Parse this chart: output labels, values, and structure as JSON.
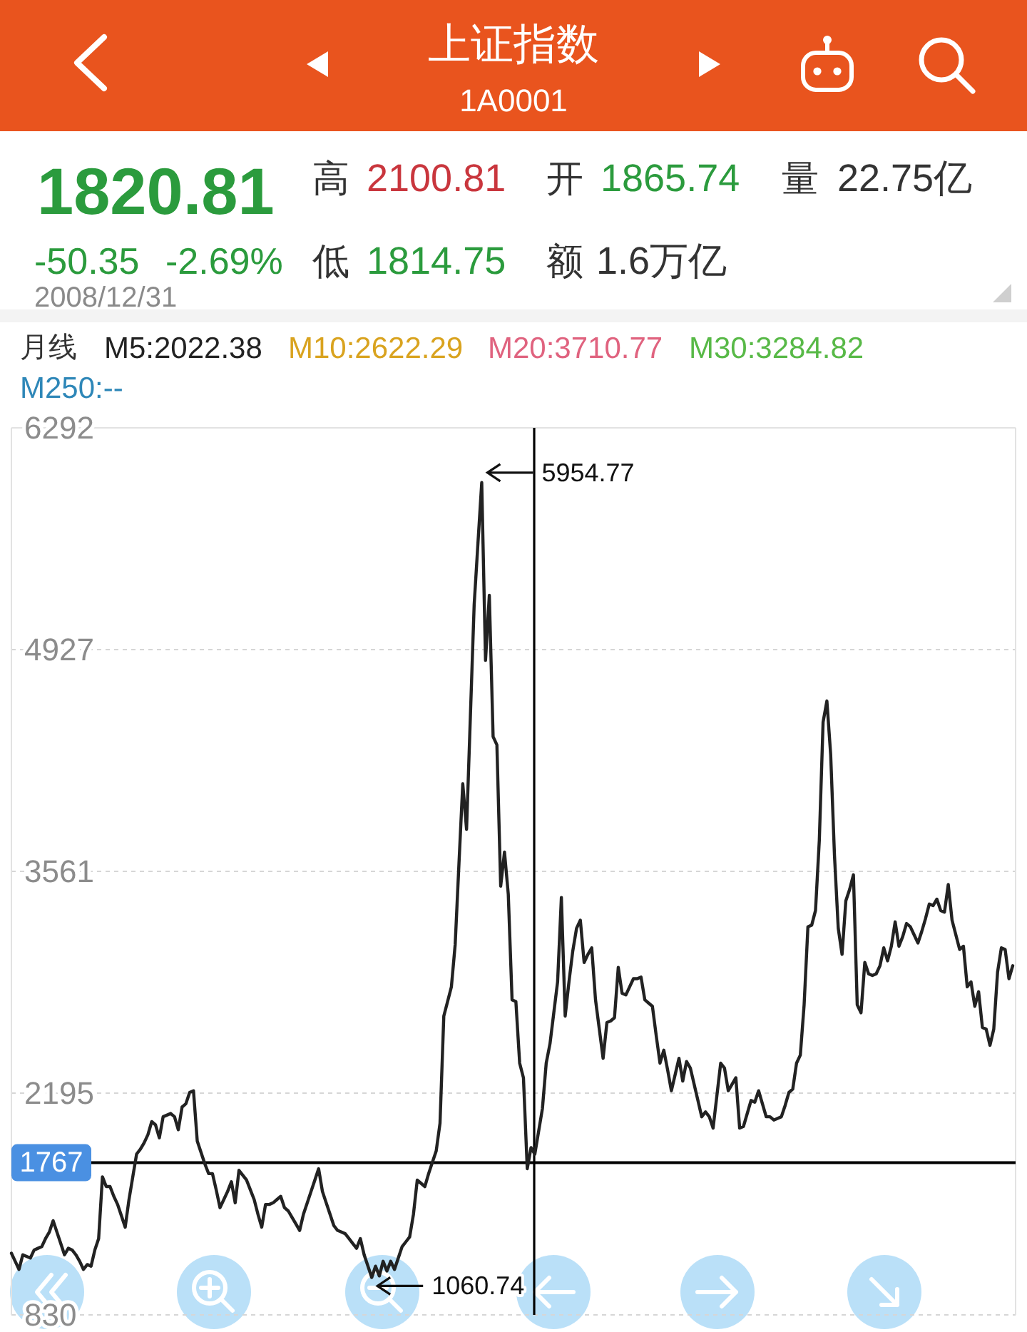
{
  "chart_data": {
    "type": "line",
    "title": "上证指数",
    "subtitle": "1A0001",
    "categories": [
      null,
      null,
      null,
      null,
      null,
      null,
      null,
      null,
      null,
      null,
      null,
      null,
      null,
      null,
      null,
      null,
      null,
      null,
      null,
      null,
      null,
      null,
      null,
      null,
      null,
      null,
      null,
      null,
      null,
      null,
      null,
      null,
      null,
      null,
      null,
      null,
      null,
      null,
      null,
      null,
      null,
      null,
      null,
      null,
      null,
      null,
      null,
      null,
      null,
      null,
      null,
      null,
      null,
      null,
      null,
      null,
      null,
      null,
      null,
      null,
      null,
      null,
      null,
      null,
      null,
      null,
      null,
      null,
      null,
      null,
      null,
      null,
      null,
      null,
      null,
      null,
      null,
      null,
      null,
      null,
      null,
      null,
      null,
      null,
      null,
      null,
      null,
      null,
      null,
      null,
      null,
      null,
      null,
      null,
      null,
      null,
      null,
      null,
      null,
      null,
      null,
      null,
      null,
      null,
      null,
      null,
      null,
      null,
      null,
      null,
      null,
      null,
      null,
      null,
      null,
      null,
      null,
      null,
      null,
      null,
      null,
      null,
      null,
      null,
      null,
      null,
      null,
      null,
      null,
      null,
      null,
      null,
      null,
      null,
      null,
      null,
      null,
      null,
      null,
      null,
      null,
      null,
      null,
      null,
      null,
      null,
      null,
      null,
      null,
      null,
      null,
      null,
      null,
      null,
      null,
      null,
      null,
      null,
      null,
      null,
      null,
      null,
      null,
      null,
      null,
      null,
      null,
      null,
      null,
      null,
      null,
      null,
      null,
      null,
      null,
      null,
      null,
      null,
      null,
      null,
      null,
      null,
      null,
      null,
      null,
      null,
      null,
      null,
      null,
      null,
      null,
      null,
      null,
      null,
      null,
      null,
      null,
      null,
      null,
      null,
      null,
      null,
      null,
      null,
      null,
      null,
      null,
      null,
      null,
      null,
      null,
      null,
      null,
      null,
      null,
      null,
      null,
      null,
      null,
      null,
      null,
      null,
      null,
      null,
      null,
      null,
      null,
      null,
      null,
      null,
      null,
      null,
      null,
      null,
      null,
      null,
      null,
      null,
      null,
      null,
      null,
      null,
      null,
      null,
      null,
      null,
      null,
      null,
      null,
      null,
      null,
      null,
      null,
      null,
      null,
      null,
      null,
      null,
      null,
      null,
      null,
      null,
      null,
      null,
      null
    ],
    "series": [
      {
        "color": "#222222",
        "values": [
          1210,
          1160,
          1110,
          1200,
          1190,
          1180,
          1230,
          1240,
          1250,
          1300,
          1340,
          1410,
          1340,
          1270,
          1200,
          1240,
          1230,
          1200,
          1160,
          1110,
          1140,
          1130,
          1230,
          1300,
          1680,
          1620,
          1620,
          1560,
          1510,
          1440,
          1370,
          1540,
          1680,
          1820,
          1850,
          1890,
          1940,
          2020,
          2000,
          1920,
          2050,
          2060,
          2070,
          2050,
          1970,
          2110,
          2130,
          2200,
          2210,
          1900,
          1830,
          1760,
          1700,
          1700,
          1600,
          1490,
          1540,
          1590,
          1650,
          1520,
          1720,
          1690,
          1660,
          1600,
          1540,
          1450,
          1370,
          1510,
          1510,
          1520,
          1540,
          1560,
          1490,
          1470,
          1430,
          1390,
          1350,
          1450,
          1520,
          1590,
          1660,
          1730,
          1590,
          1520,
          1450,
          1380,
          1350,
          1340,
          1330,
          1300,
          1270,
          1240,
          1300,
          1200,
          1130,
          1060.74,
          1130,
          1070,
          1160,
          1100,
          1160,
          1110,
          1180,
          1250,
          1280,
          1310,
          1450,
          1660,
          1640,
          1620,
          1700,
          1770,
          1840,
          2010,
          2670,
          2760,
          2850,
          3110,
          3610,
          4100,
          3820,
          4510,
          5200,
          5580,
          5954.77,
          4860,
          5260,
          4390,
          4340,
          3470,
          3680,
          3420,
          2770,
          2760,
          2380,
          2290,
          1730,
          1860,
          1820,
          1960,
          2100,
          2380,
          2500,
          2690,
          2880,
          3400,
          2670,
          2880,
          3070,
          3210,
          3260,
          3000,
          3050,
          3090,
          2770,
          2590,
          2410,
          2630,
          2640,
          2660,
          2970,
          2810,
          2800,
          2850,
          2900,
          2900,
          2910,
          2770,
          2750,
          2730,
          2550,
          2380,
          2460,
          2340,
          2210,
          2310,
          2410,
          2270,
          2390,
          2350,
          2250,
          2150,
          2050,
          2080,
          2050,
          1980,
          2180,
          2380,
          2350,
          2210,
          2250,
          2290,
          1980,
          1990,
          2070,
          2150,
          2140,
          2210,
          2130,
          2050,
          2050,
          2030,
          2040,
          2050,
          2120,
          2200,
          2220,
          2380,
          2430,
          2740,
          3220,
          3230,
          3320,
          3750,
          4480,
          4610,
          4280,
          3660,
          3210,
          3050,
          3380,
          3450,
          3540,
          2740,
          2690,
          3000,
          2930,
          2920,
          2930,
          2980,
          3090,
          3010,
          3100,
          3250,
          3100,
          3160,
          3240,
          3220,
          3170,
          3120,
          3190,
          3270,
          3360,
          3350,
          3390,
          3320,
          3310,
          3480,
          3260,
          3170,
          3080,
          3100,
          2850,
          2880,
          2730,
          2820,
          2600,
          2590,
          2490,
          2590,
          2940,
          3090,
          3080,
          2900,
          2980
        ],
        "value_labels": [
          null,
          null,
          null,
          null,
          null,
          null,
          null,
          null,
          null,
          null,
          null,
          null,
          null,
          null,
          null,
          null,
          null,
          null,
          null,
          null,
          null,
          null,
          null,
          null,
          null,
          null,
          null,
          null,
          null,
          null,
          null,
          null,
          null,
          null,
          null,
          null,
          null,
          null,
          null,
          null,
          null,
          null,
          null,
          null,
          null,
          null,
          null,
          null,
          null,
          null,
          null,
          null,
          null,
          null,
          null,
          null,
          null,
          null,
          null,
          null,
          null,
          null,
          null,
          null,
          null,
          null,
          null,
          null,
          null,
          null,
          null,
          null,
          null,
          null,
          null,
          null,
          null,
          null,
          null,
          null,
          null,
          null,
          null,
          null,
          null,
          null,
          null,
          null,
          null,
          null,
          null,
          null,
          null,
          null,
          null,
          "1060.74",
          null,
          null,
          null,
          null,
          null,
          null,
          null,
          null,
          null,
          null,
          null,
          null,
          null,
          null,
          null,
          null,
          null,
          null,
          null,
          null,
          null,
          null,
          null,
          null,
          null,
          null,
          null,
          null,
          "5954.77",
          null,
          null,
          null,
          null,
          null,
          null,
          null,
          null,
          null,
          null,
          null,
          null,
          null,
          null,
          null,
          null,
          null,
          null,
          null,
          null,
          null,
          null,
          null,
          null,
          null,
          null,
          null,
          null,
          null,
          null,
          null,
          null,
          null,
          null,
          null,
          null,
          null,
          null,
          null,
          null,
          null,
          null,
          null,
          null,
          null,
          null,
          null,
          null,
          null,
          null,
          null,
          null,
          null,
          null,
          null,
          null,
          null,
          null,
          null,
          null,
          null,
          null,
          null,
          null,
          null,
          null,
          null,
          null,
          null,
          null,
          null,
          null,
          null,
          null,
          null,
          null,
          null,
          null,
          null,
          null,
          null,
          null,
          null,
          null,
          null,
          null,
          null,
          null,
          null,
          null,
          null,
          null,
          null,
          null,
          null,
          null,
          null,
          null,
          null,
          null,
          null,
          null,
          null,
          null,
          null,
          null,
          null,
          null,
          null,
          null,
          null,
          null,
          null,
          null,
          null,
          null,
          null,
          null,
          null,
          null,
          null,
          null,
          null,
          null,
          null,
          null,
          null,
          null,
          null,
          null,
          null,
          null,
          null,
          null,
          null,
          null,
          null,
          null,
          null,
          null
        ]
      }
    ],
    "ylim": [
      830,
      6292
    ],
    "yticks": [
      830,
      2195,
      3561,
      4927,
      6292
    ],
    "grid": "y",
    "tick_labels": "y",
    "ref_lines": [
      {
        "axis": "y",
        "value": 1767,
        "label": "1767",
        "color": "#000000"
      }
    ],
    "annotations": [
      "1820.81",
      "高",
      "2100.81",
      "开",
      "1865.74",
      "量",
      "22.75亿",
      "-50.35",
      "-2.69%",
      "低",
      "1814.75",
      "额",
      "1.6万亿",
      "2008/12/31",
      "月线",
      "M5:2022.38",
      "M10:2622.29",
      "M20:3710.77",
      "M30:3284.82",
      "M250:--"
    ]
  }
}
